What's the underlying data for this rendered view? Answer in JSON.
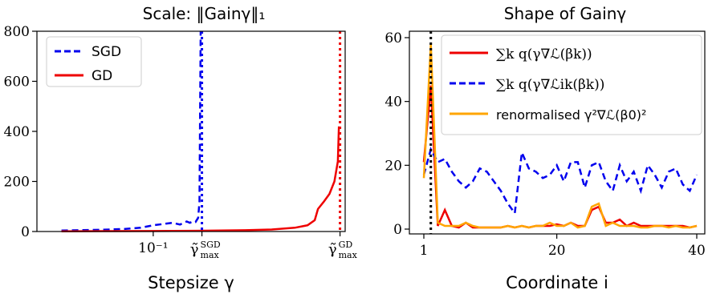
{
  "chart_data": [
    {
      "type": "line",
      "title": "Scale: ‖Gainγ‖₁",
      "xlabel": "Stepsize γ",
      "ylabel": "",
      "xscale": "log",
      "ylim": [
        0,
        800
      ],
      "yticks": [
        0,
        200,
        400,
        600,
        800
      ],
      "xtick_labels": [
        "10⁻¹",
        "γ̃ SGD max",
        "γ̃ GD max"
      ],
      "legend": {
        "placement": "top-left",
        "entries": [
          "SGD",
          "GD"
        ]
      },
      "grid": false,
      "series": [
        {
          "name": "SGD",
          "color": "#0000ee",
          "style": "dashed",
          "x": [
            0.02,
            0.04,
            0.06,
            0.08,
            0.1,
            0.12,
            0.14,
            0.16,
            0.18,
            0.19,
            0.2,
            0.21,
            0.22,
            0.225,
            0.23
          ],
          "y": [
            4,
            7,
            10,
            15,
            25,
            30,
            35,
            28,
            40,
            35,
            40,
            38,
            55,
            120,
            800
          ]
        },
        {
          "name": "GD",
          "color": "#ee0000",
          "style": "solid",
          "x": [
            0.02,
            0.05,
            0.1,
            0.2,
            0.5,
            0.8,
            1.2,
            1.5,
            1.7,
            1.8,
            2.0,
            2.2,
            2.4,
            2.55,
            2.6
          ],
          "y": [
            1,
            1.5,
            2,
            3,
            5,
            8,
            15,
            25,
            45,
            90,
            120,
            150,
            200,
            280,
            420
          ]
        }
      ],
      "vlines": [
        {
          "label": "γ̃ SGD max",
          "x": 0.235,
          "color": "#0000ee"
        },
        {
          "label": "γ̃ GD max",
          "x": 2.65,
          "color": "#ee0000"
        }
      ]
    },
    {
      "type": "line",
      "title": "Shape of Gainγ",
      "xlabel": "Coordinate i",
      "ylabel": "",
      "xlim": [
        1,
        40
      ],
      "ylim": [
        0,
        60
      ],
      "xticks": [
        1,
        20,
        40
      ],
      "yticks": [
        0,
        20,
        40,
        60
      ],
      "legend": {
        "placement": "top-right",
        "entries": [
          "∑k q(γ∇ℒ(βk))",
          "∑k q(γ∇ℒik(βk))",
          "renormalised γ²∇ℒ(β0)²"
        ]
      },
      "grid": false,
      "vline": {
        "x": 2,
        "color": "#000000",
        "style": "dotted"
      },
      "series": [
        {
          "name": "∑k q(γ∇ℒ(βk))",
          "color": "#ee0000",
          "style": "solid",
          "x": [
            1,
            2,
            3,
            4,
            5,
            6,
            7,
            8,
            9,
            10,
            11,
            12,
            13,
            14,
            15,
            16,
            17,
            18,
            19,
            20,
            21,
            22,
            23,
            24,
            25,
            26,
            27,
            28,
            29,
            30,
            31,
            32,
            33,
            34,
            35,
            36,
            37,
            38,
            39,
            40
          ],
          "y": [
            21,
            45,
            1,
            6,
            1,
            0.5,
            2,
            0.5,
            0.5,
            0.5,
            0.5,
            0.5,
            1,
            0.5,
            1,
            0.5,
            1,
            1,
            1,
            1.5,
            1,
            2,
            1,
            1,
            6,
            7,
            2,
            2,
            3,
            1,
            2,
            1,
            1,
            1,
            1,
            1,
            1,
            1,
            0.5,
            1
          ]
        },
        {
          "name": "∑k q(γ∇ℒik(βk))",
          "color": "#0000ee",
          "style": "dashed",
          "x": [
            1,
            2,
            3,
            4,
            5,
            6,
            7,
            8,
            9,
            10,
            11,
            12,
            13,
            14,
            15,
            16,
            17,
            18,
            19,
            20,
            21,
            22,
            23,
            24,
            25,
            26,
            27,
            28,
            29,
            30,
            31,
            32,
            33,
            34,
            35,
            36,
            37,
            38,
            39,
            40
          ],
          "y": [
            17,
            25,
            21,
            22,
            18,
            15,
            13,
            15,
            19,
            18,
            15,
            12,
            8,
            5,
            24,
            19,
            18,
            16,
            17,
            20,
            15,
            21,
            21,
            13,
            20,
            21,
            15,
            12,
            20,
            15,
            18,
            12,
            20,
            17,
            13,
            18,
            19,
            14,
            12,
            17
          ]
        },
        {
          "name": "renormalised γ²∇ℒ(β0)²",
          "color": "#ffa500",
          "style": "solid",
          "x": [
            1,
            2,
            3,
            4,
            5,
            6,
            7,
            8,
            9,
            10,
            11,
            12,
            13,
            14,
            15,
            16,
            17,
            18,
            19,
            20,
            21,
            22,
            23,
            24,
            25,
            26,
            27,
            28,
            29,
            30,
            31,
            32,
            33,
            34,
            35,
            36,
            37,
            38,
            39,
            40
          ],
          "y": [
            16,
            58,
            2,
            1,
            1,
            1,
            2,
            1,
            0.5,
            0.5,
            0.5,
            0.5,
            1,
            0.5,
            1,
            0.5,
            1,
            1,
            2,
            1,
            1,
            2,
            0.5,
            1,
            7,
            8,
            1,
            2,
            1,
            1,
            1,
            0.5,
            0.5,
            1,
            1,
            0.5,
            1,
            0.5,
            0.5,
            1
          ]
        }
      ]
    }
  ]
}
